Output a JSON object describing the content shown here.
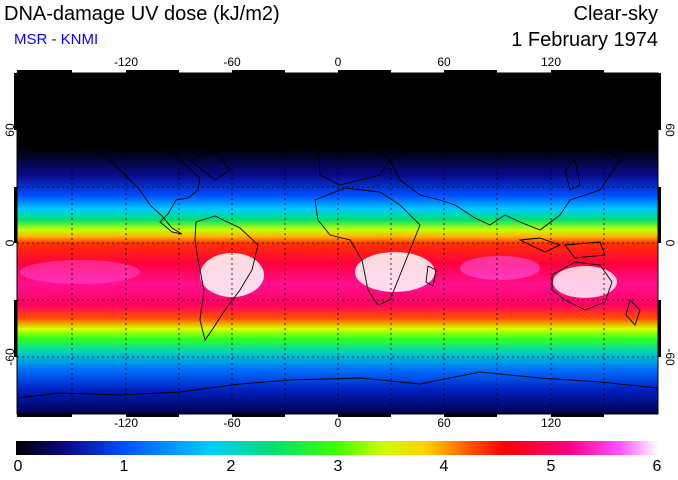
{
  "header": {
    "title": "DNA-damage UV dose (kJ/m2)",
    "subtitle": "MSR - KNMI",
    "mode": "Clear-sky",
    "date": "1 February 1974"
  },
  "map": {
    "lon_ticks": [
      "-120",
      "-60",
      "0",
      "60",
      "120"
    ],
    "lat_ticks": [
      "60",
      "0",
      "-60"
    ],
    "extent": {
      "lon": [
        -180,
        180
      ],
      "lat": [
        -90,
        90
      ]
    }
  },
  "colorbar": {
    "labels": [
      "0",
      "1",
      "2",
      "3",
      "4",
      "5",
      "6"
    ],
    "range": [
      0,
      6
    ],
    "colors": [
      "#000000",
      "#0a0a8a",
      "#0050ff",
      "#00ccff",
      "#00e070",
      "#40ff00",
      "#c8ff00",
      "#ffd000",
      "#ff6000",
      "#ff0000",
      "#ff0080",
      "#ff50ff",
      "#ffffff"
    ]
  }
}
